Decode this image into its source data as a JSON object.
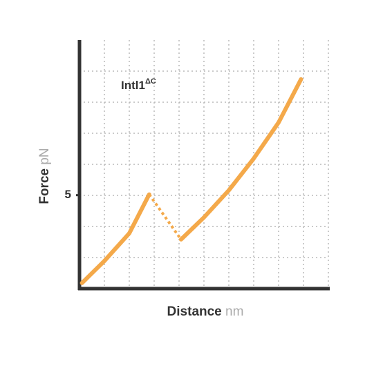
{
  "chart_data": {
    "type": "line",
    "x_label": "Distance",
    "x_unit": "nm",
    "y_label": "Force",
    "y_unit": "pN",
    "annotation": {
      "text": "Intl1",
      "superscript": "ΔC"
    },
    "xlim": [
      0,
      10
    ],
    "ylim": [
      0,
      13.3
    ],
    "yticks": [
      5
    ],
    "grid": true,
    "series": [
      {
        "color": "#f4a94a",
        "style": "solid",
        "x": [
          0.1,
          1.0,
          2.0,
          2.8,
          null,
          4.08,
          5.0,
          6.0,
          7.0,
          8.0,
          8.9
        ],
        "values": [
          0.3,
          1.48,
          2.96,
          5.04,
          null,
          2.63,
          3.81,
          5.26,
          6.96,
          8.89,
          11.2
        ]
      },
      {
        "color": "#f4a94a",
        "style": "dotted",
        "x": [
          2.8,
          4.08
        ],
        "values": [
          5.04,
          2.63
        ]
      }
    ]
  }
}
